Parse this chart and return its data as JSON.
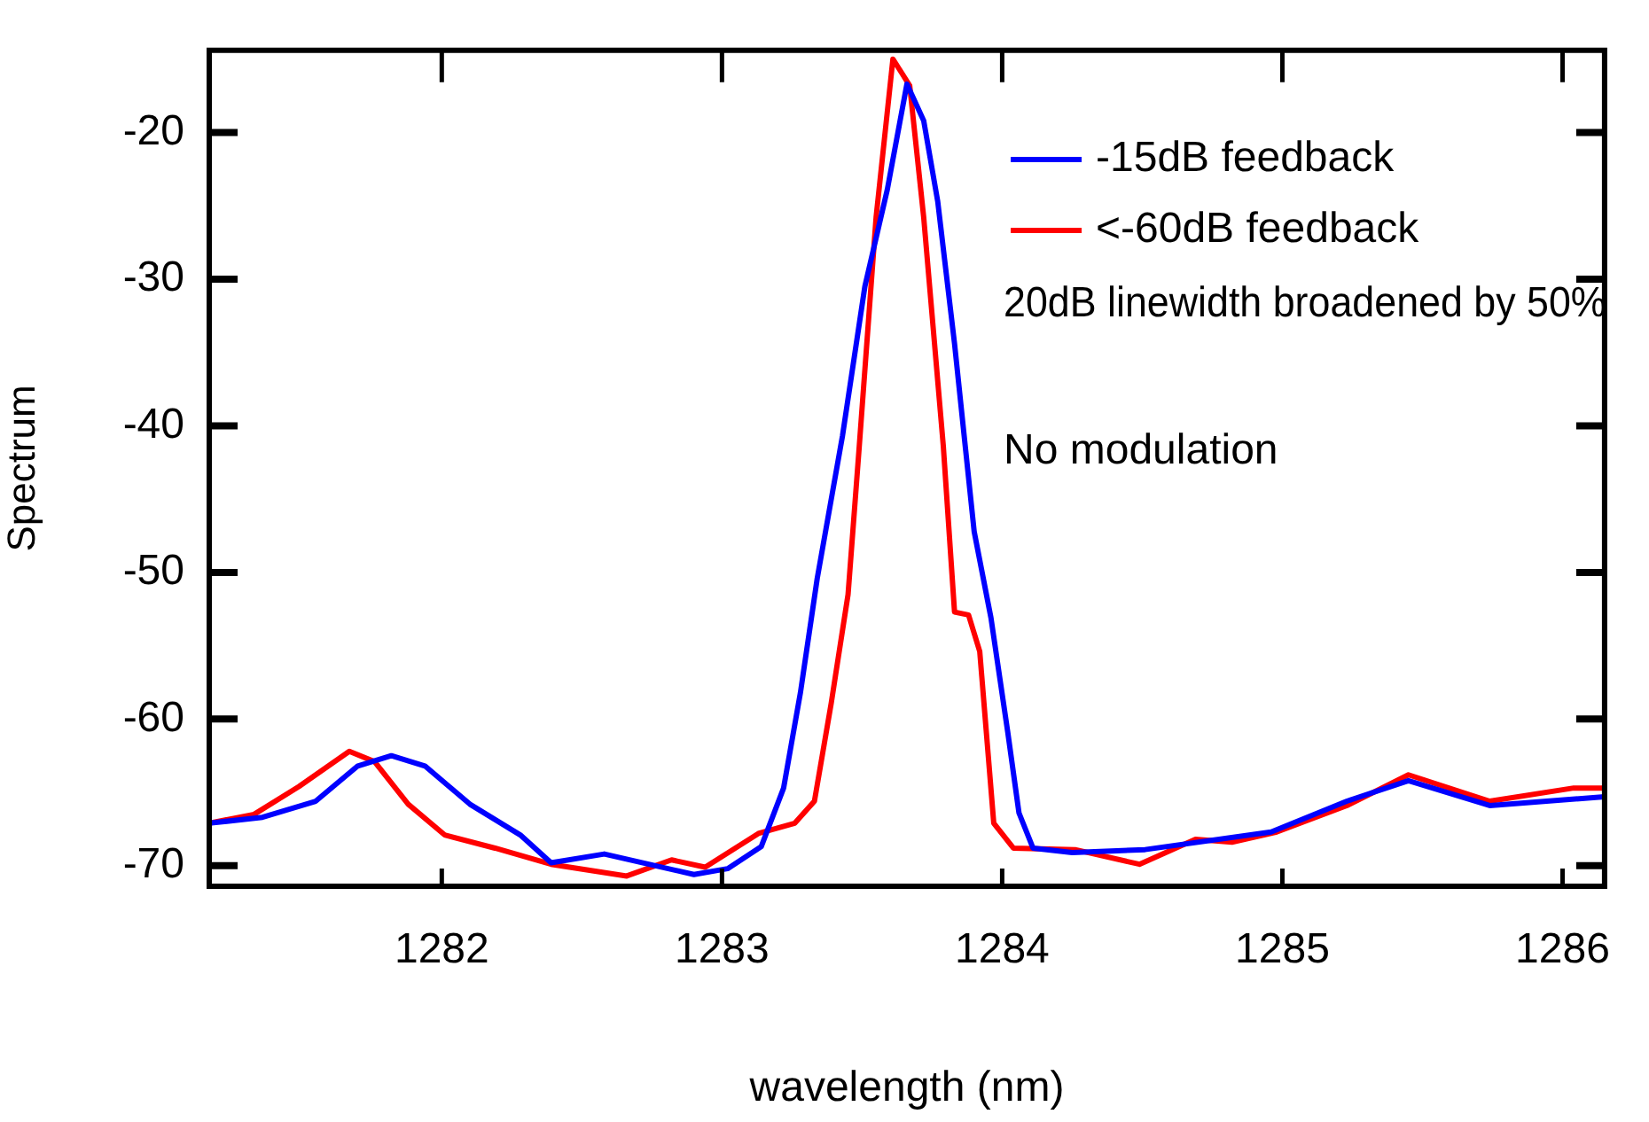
{
  "chart_data": {
    "type": "line",
    "xlabel": "wavelength (nm)",
    "ylabel": "Spectrum",
    "xlim": [
      1281.17,
      1286.15
    ],
    "ylim": [
      -71.4,
      -14.4
    ],
    "xticks": [
      1282,
      1283,
      1284,
      1285,
      1286
    ],
    "yticks": [
      -70,
      -60,
      -50,
      -40,
      -30,
      -20
    ],
    "grid": false,
    "legend": "top right",
    "marker": "none",
    "line_style": "solid",
    "annotations": [
      "20dB linewidth broadened by 50%",
      "No modulation"
    ],
    "series": [
      {
        "name": "-15dB feedback",
        "color": "#0000ff",
        "x": [
          1281.17,
          1281.36,
          1281.55,
          1281.7,
          1281.82,
          1281.94,
          1282.1,
          1282.28,
          1282.39,
          1282.58,
          1282.9,
          1283.02,
          1283.14,
          1283.22,
          1283.28,
          1283.34,
          1283.43,
          1283.51,
          1283.59,
          1283.66,
          1283.72,
          1283.77,
          1283.83,
          1283.9,
          1283.96,
          1284.02,
          1284.06,
          1284.11,
          1284.25,
          1284.51,
          1284.96,
          1285.23,
          1285.45,
          1285.74,
          1286.15
        ],
        "values": [
          -67.1,
          -66.7,
          -65.6,
          -63.2,
          -62.5,
          -63.2,
          -65.8,
          -67.9,
          -69.8,
          -69.2,
          -70.6,
          -70.2,
          -68.7,
          -64.7,
          -58.2,
          -50.4,
          -40.7,
          -30.5,
          -23.9,
          -16.7,
          -19.2,
          -24.7,
          -34.4,
          -47.2,
          -53.1,
          -60.9,
          -66.4,
          -68.8,
          -69.1,
          -68.9,
          -67.7,
          -65.6,
          -64.2,
          -65.9,
          -65.3
        ]
      },
      {
        "name": "<-60dB feedback",
        "color": "#ff0000",
        "x": [
          1281.17,
          1281.33,
          1281.49,
          1281.67,
          1281.76,
          1281.88,
          1282.01,
          1282.19,
          1282.39,
          1282.66,
          1282.82,
          1282.94,
          1283.13,
          1283.26,
          1283.33,
          1283.39,
          1283.45,
          1283.49,
          1283.55,
          1283.61,
          1283.67,
          1283.72,
          1283.79,
          1283.83,
          1283.88,
          1283.92,
          1283.97,
          1284.04,
          1284.26,
          1284.49,
          1284.69,
          1284.82,
          1284.98,
          1285.23,
          1285.45,
          1285.74,
          1286.04,
          1286.15
        ],
        "values": [
          -67.1,
          -66.5,
          -64.6,
          -62.2,
          -62.9,
          -65.8,
          -67.9,
          -68.8,
          -69.9,
          -70.7,
          -69.6,
          -70.1,
          -67.8,
          -67.1,
          -65.6,
          -58.9,
          -51.5,
          -41.4,
          -25.8,
          -15.0,
          -16.8,
          -25.8,
          -41.4,
          -52.7,
          -52.9,
          -55.4,
          -67.1,
          -68.8,
          -68.9,
          -69.9,
          -68.2,
          -68.4,
          -67.7,
          -65.9,
          -63.8,
          -65.6,
          -64.7,
          -64.7
        ]
      }
    ]
  }
}
